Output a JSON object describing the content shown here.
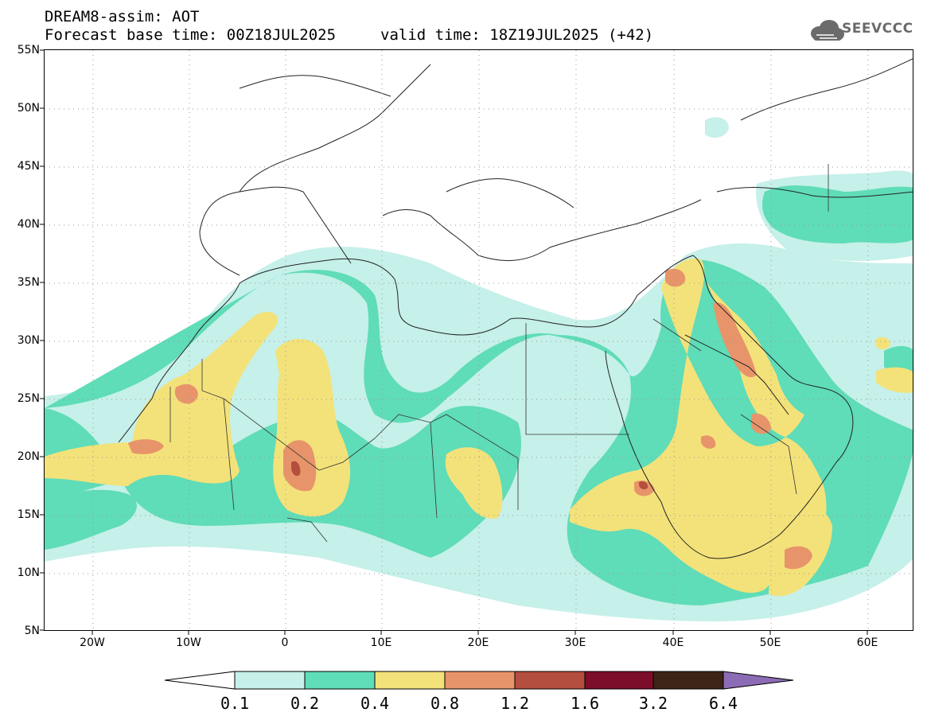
{
  "header": {
    "title": "DREAM8-assim: AOT",
    "base_time": "Forecast base time: 00Z18JUL2025",
    "valid_time": "valid time: 18Z19JUL2025 (+42)"
  },
  "logo": {
    "text": "SEEVCCC",
    "icon": "cloud-icon"
  },
  "axes": {
    "lat_labels": [
      "55N",
      "50N",
      "45N",
      "40N",
      "35N",
      "30N",
      "25N",
      "20N",
      "15N",
      "10N",
      "5N"
    ],
    "lon_labels": [
      "20W",
      "10W",
      "0",
      "10E",
      "20E",
      "30E",
      "40E",
      "50E",
      "60E"
    ]
  },
  "colorbar": {
    "labels": [
      "0.1",
      "0.2",
      "0.4",
      "0.8",
      "1.2",
      "1.6",
      "3.2",
      "6.4"
    ],
    "colors": [
      "#c6f0ea",
      "#5fdcb8",
      "#f3e27a",
      "#e8946a",
      "#b44e3e",
      "#7d0e2a",
      "#3d2416",
      "#8c6cb4"
    ]
  }
}
